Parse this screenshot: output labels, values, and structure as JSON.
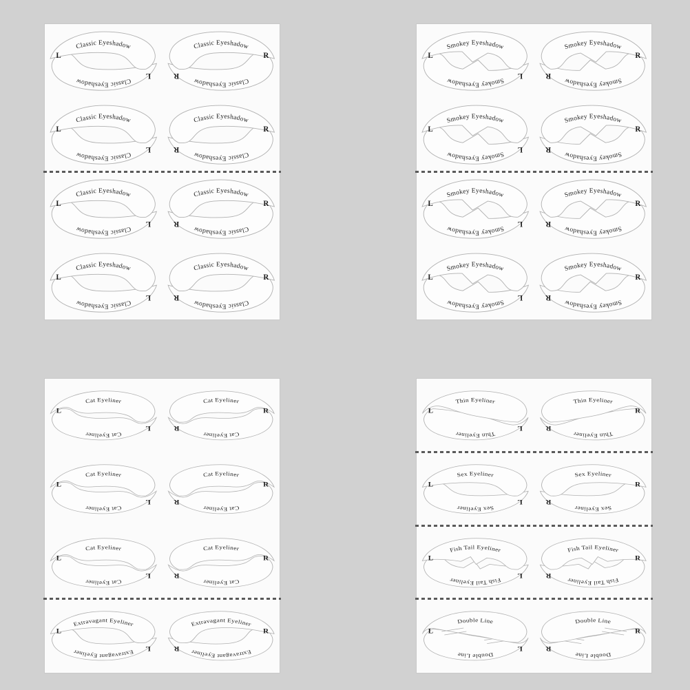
{
  "page": {
    "background_color": "#d1d1d1",
    "sheet_color": "#fbfbfb",
    "stencil_fill": "#fdfdfd",
    "outline_color": "#b0b0b0",
    "text_color": "#1d1d1d",
    "divider_color": "#5a5a5a"
  },
  "sheets": [
    {
      "id": "classic-eyeshadow-sheet",
      "position": "top-left",
      "shape": "tall",
      "rows": [
        {
          "label": "Classic Eyeshadow",
          "style": "classic",
          "left_letter": "L",
          "right_letter": "R",
          "divider_after": false
        },
        {
          "label": "Classic Eyeshadow",
          "style": "classic",
          "left_letter": "L",
          "right_letter": "R",
          "divider_after": true
        },
        {
          "label": "Classic Eyeshadow",
          "style": "classic",
          "left_letter": "L",
          "right_letter": "R",
          "divider_after": false
        },
        {
          "label": "Classic Eyeshadow",
          "style": "classic",
          "left_letter": "L",
          "right_letter": "R",
          "divider_after": false
        }
      ]
    },
    {
      "id": "smokey-eyeshadow-sheet",
      "position": "top-right",
      "shape": "tall",
      "rows": [
        {
          "label": "Smokey Eyeshadow",
          "style": "smokey",
          "left_letter": "L",
          "right_letter": "R",
          "divider_after": false
        },
        {
          "label": "Smokey Eyeshadow",
          "style": "smokey",
          "left_letter": "L",
          "right_letter": "R",
          "divider_after": true
        },
        {
          "label": "Smokey Eyeshadow",
          "style": "smokey",
          "left_letter": "L",
          "right_letter": "R",
          "divider_after": false
        },
        {
          "label": "Smokey Eyeshadow",
          "style": "smokey",
          "left_letter": "L",
          "right_letter": "R",
          "divider_after": false
        }
      ]
    },
    {
      "id": "cat-eyeliner-sheet",
      "position": "bottom-left",
      "shape": "flat",
      "rows": [
        {
          "label": "Cat Eyeliner",
          "style": "cat",
          "left_letter": "L",
          "right_letter": "R",
          "divider_after": false
        },
        {
          "label": "Cat Eyeliner",
          "style": "cat",
          "left_letter": "L",
          "right_letter": "R",
          "divider_after": false
        },
        {
          "label": "Cat Eyeliner",
          "style": "cat",
          "left_letter": "L",
          "right_letter": "R",
          "divider_after": true
        },
        {
          "label": "Extravagant Eyeliner",
          "style": "extravagant",
          "left_letter": "L",
          "right_letter": "R",
          "divider_after": false
        }
      ]
    },
    {
      "id": "eyeliner-styles-sheet",
      "position": "bottom-right",
      "shape": "flat",
      "rows": [
        {
          "label": "Thin Eyeliner",
          "style": "thin",
          "left_letter": "L",
          "right_letter": "R",
          "divider_after": true
        },
        {
          "label": "Sex Eyeliner",
          "style": "sex",
          "left_letter": "L",
          "right_letter": "R",
          "divider_after": true
        },
        {
          "label": "Fish Tail Eyeliner",
          "style": "fishtail",
          "left_letter": "L",
          "right_letter": "R",
          "divider_after": true
        },
        {
          "label": "Double Line",
          "style": "doubleline",
          "left_letter": "L",
          "right_letter": "R",
          "divider_after": false
        }
      ]
    }
  ]
}
